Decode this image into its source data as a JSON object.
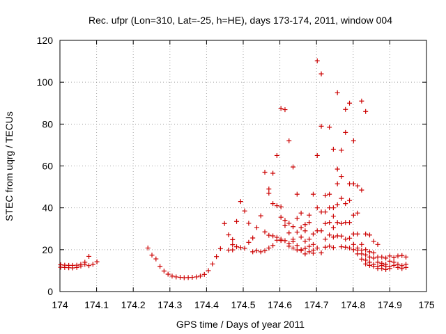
{
  "chart_data": {
    "type": "scatter",
    "title": "Rec. ufpr (Lon=310, Lat=-25, h=HE), days 173-174, 2011, window 004",
    "xlabel": "GPS time / Days of year 2011",
    "ylabel": "STEC from uqrg / TECUs",
    "xlim": [
      174,
      175
    ],
    "ylim": [
      0,
      120
    ],
    "xticks": [
      174,
      174.1,
      174.2,
      174.3,
      174.4,
      174.5,
      174.6,
      174.7,
      174.8,
      174.9,
      175
    ],
    "yticks": [
      0,
      20,
      40,
      60,
      80,
      100,
      120
    ],
    "xtick_labels": [
      "174",
      "174.1",
      "174.2",
      "174.3",
      "174.4",
      "174.5",
      "174.6",
      "174.7",
      "174.8",
      "174.9",
      "175"
    ],
    "ytick_labels": [
      "0",
      "20",
      "40",
      "60",
      "80",
      "100",
      "120"
    ],
    "grid": true,
    "marker": "+",
    "color": "#cc0000",
    "series": [
      {
        "name": "STEC",
        "x": [
          174.002,
          174.002,
          174.013,
          174.013,
          174.024,
          174.024,
          174.035,
          174.035,
          174.046,
          174.046,
          174.057,
          174.057,
          174.068,
          174.068,
          174.079,
          174.079,
          174.09,
          174.101,
          174.24,
          174.251,
          174.262,
          174.273,
          174.284,
          174.295,
          174.306,
          174.317,
          174.328,
          174.339,
          174.35,
          174.361,
          174.372,
          174.383,
          174.394,
          174.405,
          174.416,
          174.427,
          174.438,
          174.449,
          174.46,
          174.46,
          174.471,
          174.471,
          174.471,
          174.482,
          174.482,
          174.493,
          174.493,
          174.504,
          174.504,
          174.515,
          174.515,
          174.526,
          174.526,
          174.537,
          174.537,
          174.548,
          174.548,
          174.559,
          174.559,
          174.559,
          174.57,
          174.57,
          174.57,
          174.57,
          174.581,
          174.581,
          174.581,
          174.581,
          174.592,
          174.592,
          174.592,
          174.592,
          174.603,
          174.603,
          174.603,
          174.603,
          174.603,
          174.614,
          174.614,
          174.614,
          174.614,
          174.625,
          174.625,
          174.625,
          174.625,
          174.625,
          174.636,
          174.636,
          174.636,
          174.636,
          174.636,
          174.647,
          174.647,
          174.647,
          174.647,
          174.647,
          174.658,
          174.658,
          174.658,
          174.658,
          174.658,
          174.669,
          174.669,
          174.669,
          174.669,
          174.669,
          174.68,
          174.68,
          174.68,
          174.68,
          174.68,
          174.691,
          174.691,
          174.691,
          174.691,
          174.691,
          174.702,
          174.702,
          174.702,
          174.702,
          174.702,
          174.713,
          174.713,
          174.713,
          174.713,
          174.713,
          174.724,
          174.724,
          174.724,
          174.724,
          174.724,
          174.735,
          174.735,
          174.735,
          174.735,
          174.735,
          174.735,
          174.746,
          174.746,
          174.746,
          174.746,
          174.746,
          174.746,
          174.757,
          174.757,
          174.757,
          174.757,
          174.757,
          174.757,
          174.768,
          174.768,
          174.768,
          174.768,
          174.768,
          174.768,
          174.779,
          174.779,
          174.779,
          174.779,
          174.779,
          174.779,
          174.79,
          174.79,
          174.79,
          174.79,
          174.79,
          174.79,
          174.801,
          174.801,
          174.801,
          174.801,
          174.801,
          174.801,
          174.812,
          174.812,
          174.812,
          174.812,
          174.812,
          174.812,
          174.823,
          174.823,
          174.823,
          174.823,
          174.823,
          174.823,
          174.834,
          174.834,
          174.834,
          174.834,
          174.834,
          174.834,
          174.845,
          174.845,
          174.845,
          174.845,
          174.845,
          174.856,
          174.856,
          174.856,
          174.856,
          174.856,
          174.867,
          174.867,
          174.867,
          174.867,
          174.867,
          174.878,
          174.878,
          174.878,
          174.878,
          174.889,
          174.889,
          174.889,
          174.889,
          174.9,
          174.9,
          174.9,
          174.9,
          174.911,
          174.911,
          174.911,
          174.922,
          174.922,
          174.922,
          174.933,
          174.933,
          174.933,
          174.944,
          174.944,
          174.944
        ],
        "y": [
          12.8,
          11.6,
          12.6,
          11.5,
          12.5,
          11.4,
          12.5,
          11.3,
          12.6,
          11.5,
          13.0,
          12.2,
          14.0,
          13.0,
          16.8,
          12.4,
          13.0,
          14.2,
          20.8,
          17.4,
          15.6,
          12.0,
          9.8,
          8.3,
          7.4,
          7.0,
          6.8,
          6.6,
          6.7,
          6.8,
          7.0,
          7.4,
          8.2,
          10.0,
          13.2,
          16.7,
          20.5,
          32.5,
          27.1,
          19.8,
          24.8,
          22.4,
          19.9,
          33.5,
          21.4,
          43.0,
          21.0,
          38.5,
          20.7,
          32.6,
          23.5,
          25.6,
          19.0,
          30.6,
          19.5,
          36.2,
          19.0,
          57.0,
          28.5,
          19.5,
          49.0,
          47.0,
          26.9,
          20.8,
          56.5,
          42.0,
          26.6,
          22.0,
          65.0,
          41.0,
          25.9,
          24.5,
          87.5,
          40.5,
          35.5,
          25.0,
          24.4,
          86.9,
          34.0,
          31.5,
          24.3,
          72.0,
          32.6,
          28.0,
          23.0,
          21.7,
          59.5,
          31.0,
          25.0,
          23.9,
          20.8,
          46.5,
          35.0,
          28.4,
          22.0,
          19.9,
          37.5,
          30.5,
          26.0,
          20.0,
          19.6,
          32.0,
          29.0,
          24.0,
          20.6,
          18.0,
          36.5,
          33.0,
          25.0,
          21.6,
          19.0,
          46.5,
          27.5,
          22.5,
          19.8,
          18.3,
          110.2,
          65.0,
          40.0,
          29.0,
          20.8,
          104.0,
          79.0,
          38.0,
          29.0,
          18.5,
          46.0,
          38.0,
          32.5,
          25.0,
          21.2,
          78.5,
          46.5,
          40.0,
          33.0,
          27.0,
          21.7,
          68.0,
          40.0,
          36.0,
          30.5,
          26.0,
          21.0,
          95.0,
          58.5,
          51.5,
          41.5,
          33.0,
          26.6,
          67.5,
          55.0,
          44.5,
          32.5,
          26.5,
          21.4,
          87.0,
          76.0,
          42.0,
          33.0,
          25.0,
          21.2,
          90.0,
          51.5,
          43.5,
          33.0,
          25.5,
          20.8,
          72.0,
          51.5,
          36.5,
          27.5,
          22.5,
          20.0,
          50.5,
          37.5,
          27.5,
          20.8,
          19.8,
          18.0,
          91.0,
          48.5,
          22.5,
          19.8,
          18.0,
          15.5,
          86.0,
          27.5,
          20.0,
          17.5,
          15.0,
          13.2,
          27.0,
          19.0,
          16.5,
          14.0,
          12.5,
          24.0,
          18.5,
          16.0,
          13.0,
          12.0,
          22.5,
          16.5,
          14.0,
          12.0,
          11.0,
          16.5,
          13.5,
          12.5,
          11.0,
          16.0,
          13.0,
          12.0,
          10.5,
          17.0,
          14.5,
          12.0,
          11.0,
          16.2,
          14.0,
          12.5,
          17.0,
          13.0,
          11.5,
          17.2,
          12.4,
          11.0,
          16.5,
          13.0,
          11.5
        ]
      }
    ]
  }
}
